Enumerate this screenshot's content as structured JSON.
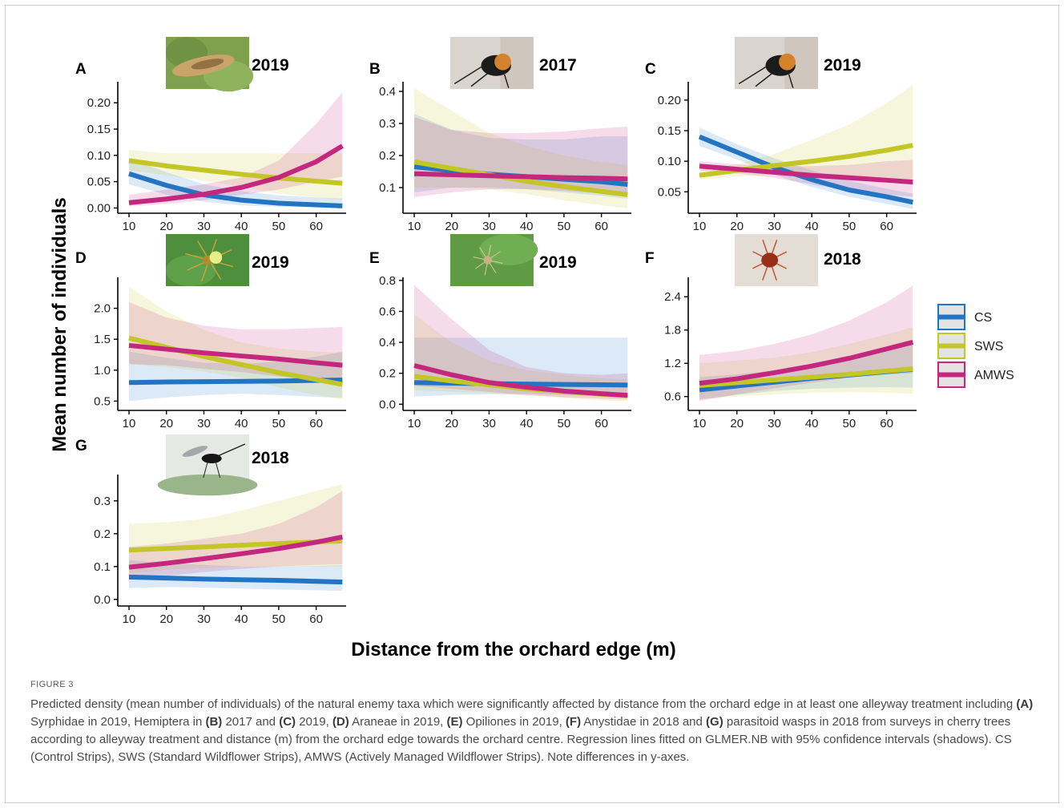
{
  "figure": {
    "y_axis_label": "Mean number of individuals",
    "x_axis_label": "Distance from the orchard edge (m)",
    "legend": [
      {
        "label": "CS",
        "color": "#2474c4"
      },
      {
        "label": "SWS",
        "color": "#c3c626"
      },
      {
        "label": "AMWS",
        "color": "#c4287e"
      }
    ]
  },
  "caption": {
    "label": "FIGURE 3",
    "segments": [
      {
        "t": "Predicted density (mean number of individuals) of the natural enemy taxa which were significantly affected by distance from the orchard edge in at least one alleyway treatment including ",
        "b": false
      },
      {
        "t": "(A)",
        "b": true
      },
      {
        "t": " Syrphidae in 2019, Hemiptera in ",
        "b": false
      },
      {
        "t": "(B)",
        "b": true
      },
      {
        "t": " 2017 and ",
        "b": false
      },
      {
        "t": "(C)",
        "b": true
      },
      {
        "t": " 2019, ",
        "b": false
      },
      {
        "t": "(D)",
        "b": true
      },
      {
        "t": " Araneae in 2019, ",
        "b": false
      },
      {
        "t": "(E)",
        "b": true
      },
      {
        "t": " Opiliones in 2019, ",
        "b": false
      },
      {
        "t": "(F)",
        "b": true
      },
      {
        "t": " Anystidae in 2018 and ",
        "b": false
      },
      {
        "t": "(G)",
        "b": true
      },
      {
        "t": " parasitoid wasps in 2018 from surveys in cherry trees according to alleyway treatment and distance (m) from the orchard edge towards the orchard centre. Regression lines fitted on GLMER.NB with 95% confidence intervals (shadows). CS (Control Strips), SWS (Standard Wildflower Strips), AMWS (Actively Managed Wildflower Strips). Note differences in y-axes.",
        "b": false
      }
    ]
  },
  "chart_data": [
    {
      "panel": "A",
      "year": "2019",
      "type": "line",
      "taxon_icon": "syrphid-larva-photo",
      "xlim": [
        7,
        68
      ],
      "ylim": [
        -0.01,
        0.24
      ],
      "x_ticks": [
        10,
        20,
        30,
        40,
        50,
        60
      ],
      "y_ticks": [
        0.0,
        0.05,
        0.1,
        0.15,
        0.2
      ],
      "y_tick_labels": [
        "0.00",
        "0.05",
        "0.10",
        "0.15",
        "0.20"
      ],
      "series": [
        {
          "name": "CS",
          "x": [
            10,
            20,
            30,
            40,
            50,
            60,
            67
          ],
          "y": [
            0.065,
            0.043,
            0.025,
            0.015,
            0.009,
            0.006,
            0.004
          ],
          "ci_low": [
            0.045,
            0.025,
            0.012,
            0.005,
            0.002,
            0.001,
            0.0
          ],
          "ci_high": [
            0.095,
            0.068,
            0.045,
            0.032,
            0.024,
            0.02,
            0.018
          ]
        },
        {
          "name": "SWS",
          "x": [
            10,
            20,
            30,
            40,
            50,
            60,
            67
          ],
          "y": [
            0.09,
            0.08,
            0.072,
            0.064,
            0.057,
            0.051,
            0.047
          ],
          "ci_low": [
            0.072,
            0.062,
            0.052,
            0.04,
            0.028,
            0.02,
            0.016
          ],
          "ci_high": [
            0.11,
            0.104,
            0.104,
            0.104,
            0.104,
            0.104,
            0.104
          ]
        },
        {
          "name": "AMWS",
          "x": [
            10,
            20,
            30,
            40,
            50,
            60,
            67
          ],
          "y": [
            0.01,
            0.017,
            0.026,
            0.039,
            0.058,
            0.088,
            0.118
          ],
          "ci_low": [
            0.003,
            0.008,
            0.015,
            0.025,
            0.035,
            0.05,
            0.06
          ],
          "ci_high": [
            0.025,
            0.035,
            0.045,
            0.058,
            0.09,
            0.16,
            0.22
          ]
        }
      ]
    },
    {
      "panel": "B",
      "year": "2017",
      "type": "line",
      "taxon_icon": "hemiptera-bug-photo",
      "xlim": [
        7,
        68
      ],
      "ylim": [
        0.02,
        0.43
      ],
      "x_ticks": [
        10,
        20,
        30,
        40,
        50,
        60
      ],
      "y_ticks": [
        0.1,
        0.2,
        0.3,
        0.4
      ],
      "y_tick_labels": [
        "0.1",
        "0.2",
        "0.3",
        "0.4"
      ],
      "series": [
        {
          "name": "CS",
          "x": [
            10,
            20,
            30,
            40,
            50,
            60,
            67
          ],
          "y": [
            0.165,
            0.153,
            0.142,
            0.134,
            0.126,
            0.118,
            0.11
          ],
          "ci_low": [
            0.085,
            0.1,
            0.1,
            0.095,
            0.085,
            0.075,
            0.065
          ],
          "ci_high": [
            0.33,
            0.28,
            0.255,
            0.25,
            0.25,
            0.26,
            0.26
          ]
        },
        {
          "name": "SWS",
          "x": [
            10,
            20,
            30,
            40,
            50,
            60,
            67
          ],
          "y": [
            0.18,
            0.16,
            0.14,
            0.12,
            0.103,
            0.088,
            0.078
          ],
          "ci_low": [
            0.1,
            0.1,
            0.095,
            0.08,
            0.06,
            0.045,
            0.035
          ],
          "ci_high": [
            0.41,
            0.34,
            0.27,
            0.23,
            0.2,
            0.18,
            0.17
          ]
        },
        {
          "name": "AMWS",
          "x": [
            10,
            20,
            30,
            40,
            50,
            60,
            67
          ],
          "y": [
            0.143,
            0.14,
            0.137,
            0.134,
            0.131,
            0.129,
            0.127
          ],
          "ci_low": [
            0.07,
            0.085,
            0.095,
            0.095,
            0.09,
            0.082,
            0.078
          ],
          "ci_high": [
            0.32,
            0.28,
            0.27,
            0.27,
            0.275,
            0.285,
            0.29
          ]
        }
      ]
    },
    {
      "panel": "C",
      "year": "2019",
      "type": "line",
      "taxon_icon": "hemiptera-bug-photo",
      "xlim": [
        7,
        68
      ],
      "ylim": [
        0.015,
        0.23
      ],
      "x_ticks": [
        10,
        20,
        30,
        40,
        50,
        60
      ],
      "y_ticks": [
        0.05,
        0.1,
        0.15,
        0.2
      ],
      "y_tick_labels": [
        "0.05",
        "0.10",
        "0.15",
        "0.20"
      ],
      "series": [
        {
          "name": "CS",
          "x": [
            10,
            20,
            30,
            40,
            50,
            60,
            67
          ],
          "y": [
            0.14,
            0.115,
            0.09,
            0.07,
            0.053,
            0.042,
            0.033
          ],
          "ci_low": [
            0.125,
            0.103,
            0.078,
            0.058,
            0.042,
            0.03,
            0.022
          ],
          "ci_high": [
            0.155,
            0.128,
            0.105,
            0.085,
            0.068,
            0.055,
            0.047
          ]
        },
        {
          "name": "SWS",
          "x": [
            10,
            20,
            30,
            40,
            50,
            60,
            67
          ],
          "y": [
            0.077,
            0.085,
            0.093,
            0.1,
            0.108,
            0.118,
            0.126
          ],
          "ci_low": [
            0.07,
            0.075,
            0.078,
            0.078,
            0.075,
            0.072,
            0.068
          ],
          "ci_high": [
            0.085,
            0.095,
            0.112,
            0.135,
            0.16,
            0.195,
            0.225
          ]
        },
        {
          "name": "AMWS",
          "x": [
            10,
            20,
            30,
            40,
            50,
            60,
            67
          ],
          "y": [
            0.092,
            0.087,
            0.082,
            0.077,
            0.073,
            0.069,
            0.066
          ],
          "ci_low": [
            0.085,
            0.08,
            0.073,
            0.062,
            0.052,
            0.045,
            0.042
          ],
          "ci_high": [
            0.1,
            0.095,
            0.092,
            0.092,
            0.094,
            0.1,
            0.102
          ]
        }
      ]
    },
    {
      "panel": "D",
      "year": "2019",
      "type": "line",
      "taxon_icon": "spider-photo",
      "xlim": [
        7,
        68
      ],
      "ylim": [
        0.35,
        2.5
      ],
      "x_ticks": [
        10,
        20,
        30,
        40,
        50,
        60
      ],
      "y_ticks": [
        0.5,
        1.0,
        1.5,
        2.0
      ],
      "y_tick_labels": [
        "0.5",
        "1.0",
        "1.5",
        "2.0"
      ],
      "series": [
        {
          "name": "CS",
          "x": [
            10,
            20,
            30,
            40,
            50,
            60,
            67
          ],
          "y": [
            0.8,
            0.81,
            0.815,
            0.82,
            0.825,
            0.835,
            0.84
          ],
          "ci_low": [
            0.5,
            0.56,
            0.6,
            0.62,
            0.6,
            0.57,
            0.55
          ],
          "ci_high": [
            1.3,
            1.2,
            1.12,
            1.1,
            1.14,
            1.22,
            1.3
          ]
        },
        {
          "name": "SWS",
          "x": [
            10,
            20,
            30,
            40,
            50,
            60,
            67
          ],
          "y": [
            1.52,
            1.37,
            1.22,
            1.09,
            0.96,
            0.85,
            0.77
          ],
          "ci_low": [
            1.1,
            1.05,
            0.98,
            0.88,
            0.72,
            0.6,
            0.53
          ],
          "ci_high": [
            2.35,
            1.95,
            1.65,
            1.45,
            1.35,
            1.3,
            1.28
          ]
        },
        {
          "name": "AMWS",
          "x": [
            10,
            20,
            30,
            40,
            50,
            60,
            67
          ],
          "y": [
            1.4,
            1.34,
            1.28,
            1.23,
            1.18,
            1.12,
            1.08
          ],
          "ci_low": [
            1.1,
            1.08,
            1.02,
            0.97,
            0.9,
            0.82,
            0.78
          ],
          "ci_high": [
            2.1,
            1.85,
            1.72,
            1.66,
            1.66,
            1.68,
            1.7
          ]
        }
      ]
    },
    {
      "panel": "E",
      "year": "2019",
      "type": "line",
      "taxon_icon": "harvestman-photo",
      "xlim": [
        7,
        68
      ],
      "ylim": [
        -0.04,
        0.82
      ],
      "x_ticks": [
        10,
        20,
        30,
        40,
        50,
        60
      ],
      "y_ticks": [
        0.0,
        0.2,
        0.4,
        0.6,
        0.8
      ],
      "y_tick_labels": [
        "0.0",
        "0.2",
        "0.4",
        "0.6",
        "0.8"
      ],
      "series": [
        {
          "name": "CS",
          "x": [
            10,
            20,
            30,
            40,
            50,
            60,
            67
          ],
          "y": [
            0.14,
            0.136,
            0.133,
            0.13,
            0.128,
            0.126,
            0.124
          ],
          "ci_low": [
            0.05,
            0.06,
            0.065,
            0.065,
            0.06,
            0.05,
            0.04
          ],
          "ci_high": [
            0.43,
            0.43,
            0.43,
            0.43,
            0.43,
            0.43,
            0.43
          ]
        },
        {
          "name": "SWS",
          "x": [
            10,
            20,
            30,
            40,
            50,
            60,
            67
          ],
          "y": [
            0.18,
            0.15,
            0.125,
            0.1,
            0.082,
            0.065,
            0.055
          ],
          "ci_low": [
            0.09,
            0.08,
            0.07,
            0.055,
            0.04,
            0.025,
            0.02
          ],
          "ci_high": [
            0.58,
            0.4,
            0.28,
            0.22,
            0.19,
            0.17,
            0.16
          ]
        },
        {
          "name": "AMWS",
          "x": [
            10,
            20,
            30,
            40,
            50,
            60,
            67
          ],
          "y": [
            0.25,
            0.19,
            0.14,
            0.11,
            0.085,
            0.068,
            0.058
          ],
          "ci_low": [
            0.12,
            0.1,
            0.08,
            0.06,
            0.045,
            0.035,
            0.03
          ],
          "ci_high": [
            0.77,
            0.55,
            0.35,
            0.24,
            0.2,
            0.19,
            0.2
          ]
        }
      ]
    },
    {
      "panel": "F",
      "year": "2018",
      "type": "line",
      "taxon_icon": "anystid-mite-photo",
      "xlim": [
        7,
        68
      ],
      "ylim": [
        0.35,
        2.75
      ],
      "x_ticks": [
        10,
        20,
        30,
        40,
        50,
        60
      ],
      "y_ticks": [
        0.6,
        1.2,
        1.8,
        2.4
      ],
      "y_tick_labels": [
        "0.6",
        "1.2",
        "1.8",
        "2.4"
      ],
      "series": [
        {
          "name": "CS",
          "x": [
            10,
            20,
            30,
            40,
            50,
            60,
            67
          ],
          "y": [
            0.72,
            0.79,
            0.86,
            0.93,
            0.99,
            1.05,
            1.09
          ],
          "ci_low": [
            0.55,
            0.63,
            0.7,
            0.74,
            0.76,
            0.77,
            0.76
          ],
          "ci_high": [
            0.95,
            1.0,
            1.07,
            1.15,
            1.27,
            1.42,
            1.55
          ]
        },
        {
          "name": "SWS",
          "x": [
            10,
            20,
            30,
            40,
            50,
            60,
            67
          ],
          "y": [
            0.8,
            0.85,
            0.9,
            0.95,
            1.0,
            1.06,
            1.1
          ],
          "ci_low": [
            0.55,
            0.6,
            0.64,
            0.67,
            0.68,
            0.67,
            0.65
          ],
          "ci_high": [
            1.2,
            1.25,
            1.3,
            1.4,
            1.55,
            1.72,
            1.85
          ]
        },
        {
          "name": "AMWS",
          "x": [
            10,
            20,
            30,
            40,
            50,
            60,
            67
          ],
          "y": [
            0.84,
            0.92,
            1.03,
            1.15,
            1.29,
            1.46,
            1.58
          ],
          "ci_low": [
            0.52,
            0.64,
            0.75,
            0.85,
            0.94,
            1.0,
            1.02
          ],
          "ci_high": [
            1.35,
            1.42,
            1.55,
            1.72,
            1.97,
            2.3,
            2.6
          ]
        }
      ]
    },
    {
      "panel": "G",
      "year": "2018",
      "type": "line",
      "taxon_icon": "parasitoid-wasp-photo",
      "xlim": [
        7,
        68
      ],
      "ylim": [
        -0.02,
        0.38
      ],
      "x_ticks": [
        10,
        20,
        30,
        40,
        50,
        60
      ],
      "y_ticks": [
        0.0,
        0.1,
        0.2,
        0.3
      ],
      "y_tick_labels": [
        "0.0",
        "0.1",
        "0.2",
        "0.3"
      ],
      "series": [
        {
          "name": "CS",
          "x": [
            10,
            20,
            30,
            40,
            50,
            60,
            67
          ],
          "y": [
            0.068,
            0.065,
            0.062,
            0.06,
            0.058,
            0.055,
            0.053
          ],
          "ci_low": [
            0.035,
            0.038,
            0.036,
            0.033,
            0.03,
            0.028,
            0.026
          ],
          "ci_high": [
            0.12,
            0.11,
            0.105,
            0.1,
            0.1,
            0.102,
            0.105
          ]
        },
        {
          "name": "SWS",
          "x": [
            10,
            20,
            30,
            40,
            50,
            60,
            67
          ],
          "y": [
            0.15,
            0.155,
            0.16,
            0.165,
            0.17,
            0.175,
            0.178
          ],
          "ci_low": [
            0.08,
            0.09,
            0.095,
            0.1,
            0.1,
            0.1,
            0.1
          ],
          "ci_high": [
            0.23,
            0.235,
            0.245,
            0.27,
            0.3,
            0.33,
            0.35
          ]
        },
        {
          "name": "AMWS",
          "x": [
            10,
            20,
            30,
            40,
            50,
            60,
            67
          ],
          "y": [
            0.098,
            0.11,
            0.124,
            0.139,
            0.155,
            0.174,
            0.19
          ],
          "ci_low": [
            0.06,
            0.072,
            0.083,
            0.093,
            0.1,
            0.105,
            0.107
          ],
          "ci_high": [
            0.16,
            0.17,
            0.185,
            0.2,
            0.23,
            0.28,
            0.33
          ]
        }
      ]
    }
  ]
}
